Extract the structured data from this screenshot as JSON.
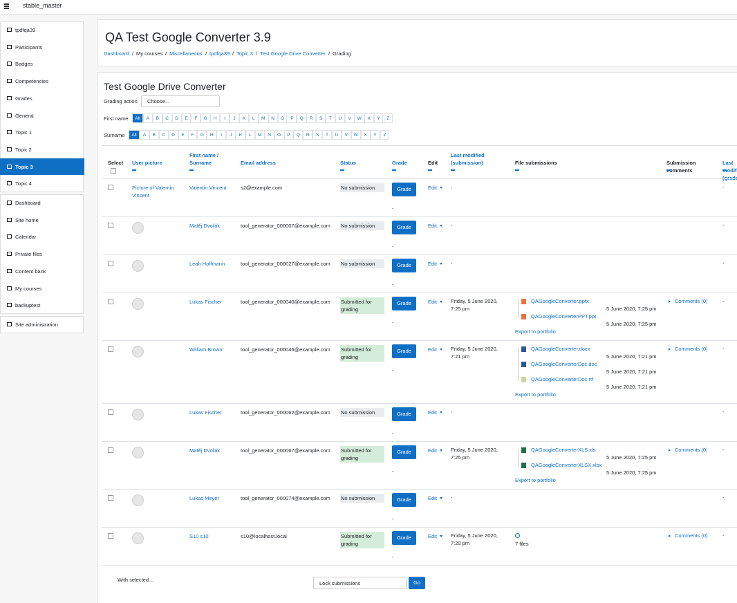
{
  "navbar": {
    "site": "stable_master"
  },
  "sidebar": {
    "groups": [
      [
        {
          "label": "tpdfqa39"
        },
        {
          "label": "Participants"
        },
        {
          "label": "Badges"
        },
        {
          "label": "Competencies"
        },
        {
          "label": "Grades"
        },
        {
          "label": "General"
        },
        {
          "label": "Topic 1"
        },
        {
          "label": "Topic 2"
        },
        {
          "label": "Topic 3",
          "active": true
        },
        {
          "label": "Topic 4"
        }
      ],
      [
        {
          "label": "Dashboard"
        },
        {
          "label": "Site home"
        },
        {
          "label": "Calendar"
        },
        {
          "label": "Private files"
        },
        {
          "label": "Content bank"
        },
        {
          "label": "My courses"
        },
        {
          "label": "backuptest"
        }
      ],
      [
        {
          "label": "Site administration"
        }
      ]
    ]
  },
  "header": {
    "title": "QA Test Google Converter 3.9",
    "breadcrumb_separator": "/",
    "breadcrumb": [
      "Dashboard",
      "My courses",
      "Miscellaneous",
      "tpdfqa39",
      "Topic 3",
      "Test Google Drive Converter",
      "Grading"
    ]
  },
  "assignment": {
    "title": "Test Google Drive Converter",
    "grading_action_label": "Grading action",
    "grading_action_value": "Choose...",
    "firstname_label": "First name",
    "surname_label": "Surname",
    "letters": [
      "All",
      "A",
      "B",
      "C",
      "D",
      "E",
      "F",
      "G",
      "H",
      "I",
      "J",
      "K",
      "L",
      "M",
      "N",
      "O",
      "P",
      "Q",
      "R",
      "S",
      "T",
      "U",
      "V",
      "W",
      "X",
      "Y",
      "Z"
    ]
  },
  "table": {
    "headers": [
      "Select",
      "User picture",
      "First name / Surname",
      "Email address",
      "Status",
      "Grade",
      "Edit",
      "Last modified (submission)",
      "File submissions",
      "Submission comments",
      "Last modified (grade)"
    ],
    "grade_button": "Grade",
    "edit": "Edit",
    "grade_dash": "-",
    "export": "Export to portfolio",
    "comments": "Comments (0)",
    "rows": [
      {
        "picture": "Picture of Valentin Vincent",
        "name": "Valentin Vincent",
        "email": "s2@example.com",
        "status": "No submission",
        "status_color": "#e9ecef",
        "last_modified": "-",
        "last_grade": "-"
      },
      {
        "name": "Matěj Dvořák",
        "email": "tool_generator_000007@example.com",
        "status": "No submission",
        "status_color": "#e9ecef",
        "last_modified": "-",
        "last_grade": "-"
      },
      {
        "name": "Leah Hoffmann",
        "email": "tool_generator_000027@example.com",
        "status": "No submission",
        "status_color": "#e9ecef",
        "last_modified": "-",
        "last_grade": "-"
      },
      {
        "name": "Lukas Fischer",
        "email": "tool_generator_000040@example.com",
        "status": "Submitted for grading",
        "status_color": "#d4edda",
        "last_modified": "Friday, 5 June 2020, 7:25 pm",
        "last_grade": "-",
        "files": [
          {
            "name": "QAGoogleConverter.pptx",
            "date": "5 June 2020, 7:25 pm",
            "icon_color": "#e8743b"
          },
          {
            "name": "QAGoogleConverterPPT.ppt",
            "date": "5 June 2020, 7:25 pm",
            "icon_color": "#e8743b"
          }
        ]
      },
      {
        "name": "William Brown",
        "email": "tool_generator_000046@example.com",
        "status": "Submitted for grading",
        "status_color": "#d4edda",
        "last_modified": "Friday, 5 June 2020, 7:21 pm",
        "last_grade": "-",
        "files": [
          {
            "name": "QAGoogleConverter.docx",
            "date": "5 June 2020, 7:21 pm",
            "icon_color": "#2b5797"
          },
          {
            "name": "QAGoogleConverterDoc.doc",
            "date": "5 June 2020, 7:21 pm",
            "icon_color": "#2b5797"
          },
          {
            "name": "QAGoogleConverterDoc.rtf",
            "date": "5 June 2020, 7:21 pm",
            "icon_color": "#c9d6a3"
          }
        ]
      },
      {
        "name": "Lukas Fischer",
        "email": "tool_generator_000062@example.com",
        "status": "No submission",
        "status_color": "#e9ecef",
        "last_modified": "-",
        "last_grade": "-"
      },
      {
        "name": "Matěj Dvořák",
        "email": "tool_generator_000067@example.com",
        "status": "Submitted for grading",
        "status_color": "#d4edda",
        "last_modified": "Friday, 5 June 2020, 7:25 pm",
        "last_grade": "-",
        "files": [
          {
            "name": "QAGoogleConverterXLS.xls",
            "date": "5 June 2020, 7:25 pm",
            "icon_color": "#1e7145"
          },
          {
            "name": "QAGoogleConverterXLSX.xlsx",
            "date": "5 June 2020, 7:25 pm",
            "icon_color": "#1e7145"
          }
        ]
      },
      {
        "name": "Lukas Meyer",
        "email": "tool_generator_000074@example.com",
        "status": "No submission",
        "status_color": "#e9ecef",
        "last_modified": "-",
        "last_grade": "-"
      },
      {
        "name": "S10 s10",
        "email": "s10@localhost.local",
        "status": "Submitted for grading",
        "status_color": "#d4edda",
        "last_modified": "Friday, 5 June 2020, 7:20 pm",
        "last_grade": "-",
        "files_summary": "7 files"
      }
    ]
  },
  "footer": {
    "with_selected": "With selected...",
    "action": "Lock submissions",
    "go": "Go"
  }
}
